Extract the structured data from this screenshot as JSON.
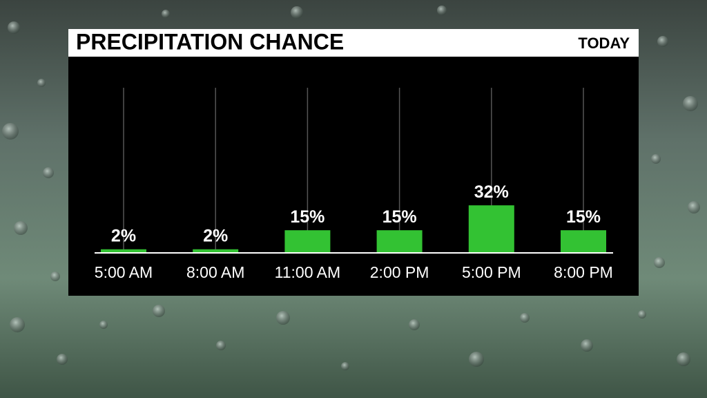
{
  "chart_data": {
    "type": "bar",
    "title": "PRECIPITATION CHANCE",
    "subtitle": "TODAY",
    "categories": [
      "5:00 AM",
      "8:00 AM",
      "11:00 AM",
      "2:00 PM",
      "5:00 PM",
      "8:00 PM"
    ],
    "values": [
      2,
      2,
      15,
      15,
      32,
      15
    ],
    "value_labels": [
      "2%",
      "2%",
      "15%",
      "15%",
      "32%",
      "15%"
    ],
    "color": "#33c233"
  }
}
